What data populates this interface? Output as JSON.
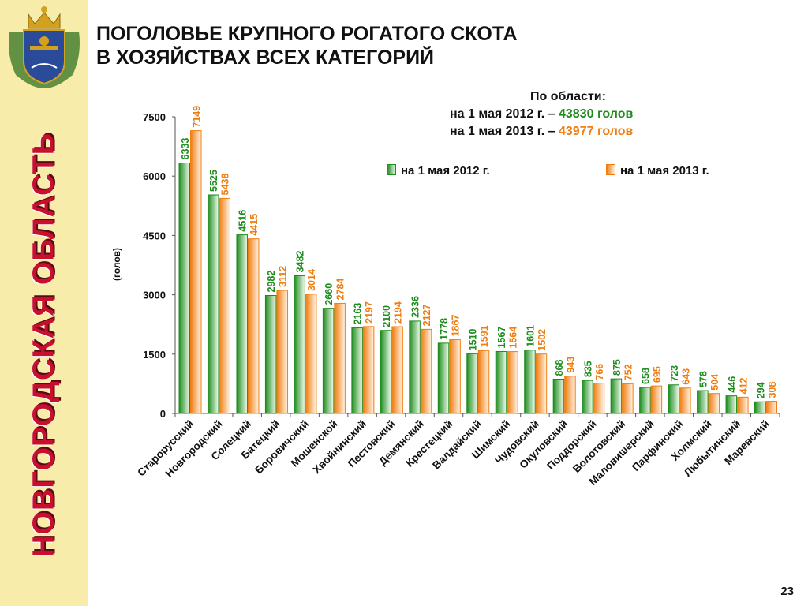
{
  "sidebar": {
    "region_name": "НОВГОРОДСКАЯ ОБЛАСТЬ"
  },
  "title": {
    "line1": "ПОГОЛОВЬЕ КРУПНОГО РОГАТОГО СКОТА",
    "line2": "В ХОЗЯЙСТВАХ ВСЕХ КАТЕГОРИЙ"
  },
  "totals": {
    "heading": "По области:",
    "row2012": {
      "label": "на 1 мая 2012 г. –",
      "value": "43830 голов"
    },
    "row2013": {
      "label": "на 1 мая 2013 г. –",
      "value": "43977 голов"
    }
  },
  "page_number": "23",
  "colors": {
    "green": "#1e8c1e",
    "orange": "#f07d10",
    "title_red": "#c8102e",
    "sidebar": "#f8ecaa"
  },
  "chart_data": {
    "type": "bar",
    "ylabel": "(голов)",
    "ylim": [
      0,
      7500
    ],
    "yticks": [
      "0",
      "1500",
      "3000",
      "4500",
      "6000",
      "7500"
    ],
    "legend_position": "top-right",
    "categories": [
      "Старорусский",
      "Новгородский",
      "Солецкий",
      "Батецкий",
      "Боровичский",
      "Мошенской",
      "Хвойнинский",
      "Пестовский",
      "Демянский",
      "Крестецкий",
      "Валдайский",
      "Шимский",
      "Чудовский",
      "Окуловский",
      "Поддорский",
      "Волотовский",
      "Маловишерский",
      "Парфинский",
      "Холмский",
      "Любытинский",
      "Маревский"
    ],
    "series": [
      {
        "name": "на 1 мая 2012 г.",
        "color": "#1e8c1e",
        "values": [
          6333,
          5525,
          4516,
          2982,
          3482,
          2660,
          2163,
          2100,
          2336,
          1778,
          1510,
          1567,
          1601,
          868,
          835,
          875,
          658,
          723,
          578,
          446,
          294
        ]
      },
      {
        "name": "на 1 мая 2013 г.",
        "color": "#f07d10",
        "values": [
          7149,
          5438,
          4415,
          3112,
          3014,
          2784,
          2197,
          2194,
          2127,
          1867,
          1591,
          1564,
          1502,
          943,
          766,
          752,
          695,
          643,
          504,
          412,
          308
        ]
      }
    ]
  }
}
